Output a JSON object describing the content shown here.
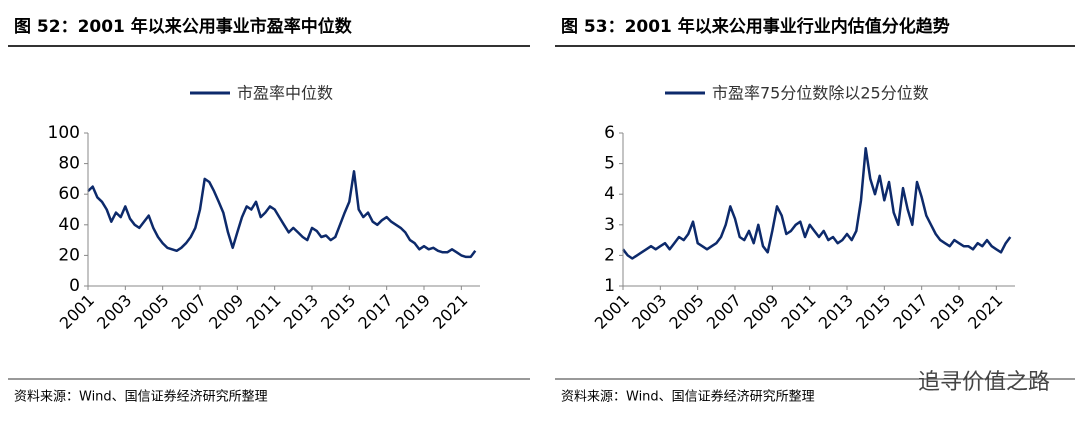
{
  "chart_data": [
    {
      "type": "line",
      "title": "图 52：2001 年以来公用事业市盈率中位数",
      "source": "资料来源：Wind、国信证券经济研究所整理",
      "x": [
        2001,
        2001.25,
        2001.5,
        2001.75,
        2002,
        2002.25,
        2002.5,
        2002.75,
        2003,
        2003.25,
        2003.5,
        2003.75,
        2004,
        2004.25,
        2004.5,
        2004.75,
        2005,
        2005.25,
        2005.5,
        2005.75,
        2006,
        2006.25,
        2006.5,
        2006.75,
        2007,
        2007.25,
        2007.5,
        2007.75,
        2008,
        2008.25,
        2008.5,
        2008.75,
        2009,
        2009.25,
        2009.5,
        2009.75,
        2010,
        2010.25,
        2010.5,
        2010.75,
        2011,
        2011.25,
        2011.5,
        2011.75,
        2012,
        2012.25,
        2012.5,
        2012.75,
        2013,
        2013.25,
        2013.5,
        2013.75,
        2014,
        2014.25,
        2014.5,
        2014.75,
        2015,
        2015.25,
        2015.5,
        2015.75,
        2016,
        2016.25,
        2016.5,
        2016.75,
        2017,
        2017.25,
        2017.5,
        2017.75,
        2018,
        2018.25,
        2018.5,
        2018.75,
        2019,
        2019.25,
        2019.5,
        2019.75,
        2020,
        2020.25,
        2020.5,
        2020.75,
        2021,
        2021.25,
        2021.5,
        2021.75
      ],
      "series": [
        {
          "name": "市盈率中位数",
          "color": "#0d2a6b",
          "values": [
            62,
            65,
            58,
            55,
            50,
            42,
            48,
            45,
            52,
            44,
            40,
            38,
            42,
            46,
            38,
            32,
            28,
            25,
            24,
            23,
            25,
            28,
            32,
            38,
            50,
            70,
            68,
            62,
            55,
            48,
            35,
            25,
            35,
            45,
            52,
            50,
            55,
            45,
            48,
            52,
            50,
            45,
            40,
            35,
            38,
            35,
            32,
            30,
            38,
            36,
            32,
            33,
            30,
            32,
            40,
            48,
            55,
            75,
            50,
            45,
            48,
            42,
            40,
            43,
            45,
            42,
            40,
            38,
            35,
            30,
            28,
            24,
            26,
            24,
            25,
            23,
            22,
            22,
            24,
            22,
            20,
            19,
            19,
            23
          ]
        }
      ],
      "xlim": [
        2001,
        2022
      ],
      "xticks": [
        2001,
        2003,
        2005,
        2007,
        2009,
        2011,
        2013,
        2015,
        2017,
        2019,
        2021
      ],
      "ylim": [
        0,
        100
      ],
      "yticks": [
        0,
        20,
        40,
        60,
        80,
        100
      ]
    },
    {
      "type": "line",
      "title": "图 53：2001 年以来公用事业行业内估值分化趋势",
      "source": "资料来源：Wind、国信证券经济研究所整理",
      "x": [
        2001,
        2001.25,
        2001.5,
        2001.75,
        2002,
        2002.25,
        2002.5,
        2002.75,
        2003,
        2003.25,
        2003.5,
        2003.75,
        2004,
        2004.25,
        2004.5,
        2004.75,
        2005,
        2005.25,
        2005.5,
        2005.75,
        2006,
        2006.25,
        2006.5,
        2006.75,
        2007,
        2007.25,
        2007.5,
        2007.75,
        2008,
        2008.25,
        2008.5,
        2008.75,
        2009,
        2009.25,
        2009.5,
        2009.75,
        2010,
        2010.25,
        2010.5,
        2010.75,
        2011,
        2011.25,
        2011.5,
        2011.75,
        2012,
        2012.25,
        2012.5,
        2012.75,
        2013,
        2013.25,
        2013.5,
        2013.75,
        2014,
        2014.25,
        2014.5,
        2014.75,
        2015,
        2015.25,
        2015.5,
        2015.75,
        2016,
        2016.25,
        2016.5,
        2016.75,
        2017,
        2017.25,
        2017.5,
        2017.75,
        2018,
        2018.25,
        2018.5,
        2018.75,
        2019,
        2019.25,
        2019.5,
        2019.75,
        2020,
        2020.25,
        2020.5,
        2020.75,
        2021,
        2021.25,
        2021.5,
        2021.75
      ],
      "series": [
        {
          "name": "市盈率75分位数除以25分位数",
          "color": "#0d2a6b",
          "values": [
            2.2,
            2.0,
            1.9,
            2.0,
            2.1,
            2.2,
            2.3,
            2.2,
            2.3,
            2.4,
            2.2,
            2.4,
            2.6,
            2.5,
            2.7,
            3.1,
            2.4,
            2.3,
            2.2,
            2.3,
            2.4,
            2.6,
            3.0,
            3.6,
            3.2,
            2.6,
            2.5,
            2.8,
            2.4,
            3.0,
            2.3,
            2.1,
            2.8,
            3.6,
            3.3,
            2.7,
            2.8,
            3.0,
            3.1,
            2.6,
            3.0,
            2.8,
            2.6,
            2.8,
            2.5,
            2.6,
            2.4,
            2.5,
            2.7,
            2.5,
            2.8,
            3.8,
            5.5,
            4.5,
            4.0,
            4.6,
            3.8,
            4.4,
            3.4,
            3.0,
            4.2,
            3.5,
            3.0,
            4.4,
            3.9,
            3.3,
            3.0,
            2.7,
            2.5,
            2.4,
            2.3,
            2.5,
            2.4,
            2.3,
            2.3,
            2.2,
            2.4,
            2.3,
            2.5,
            2.3,
            2.2,
            2.1,
            2.4,
            2.6
          ]
        }
      ],
      "xlim": [
        2001,
        2022
      ],
      "xticks": [
        2001,
        2003,
        2005,
        2007,
        2009,
        2011,
        2013,
        2015,
        2017,
        2019,
        2021
      ],
      "ylim": [
        1,
        6
      ],
      "yticks": [
        1,
        2,
        3,
        4,
        5,
        6
      ]
    }
  ],
  "watermark": "追寻价值之路"
}
